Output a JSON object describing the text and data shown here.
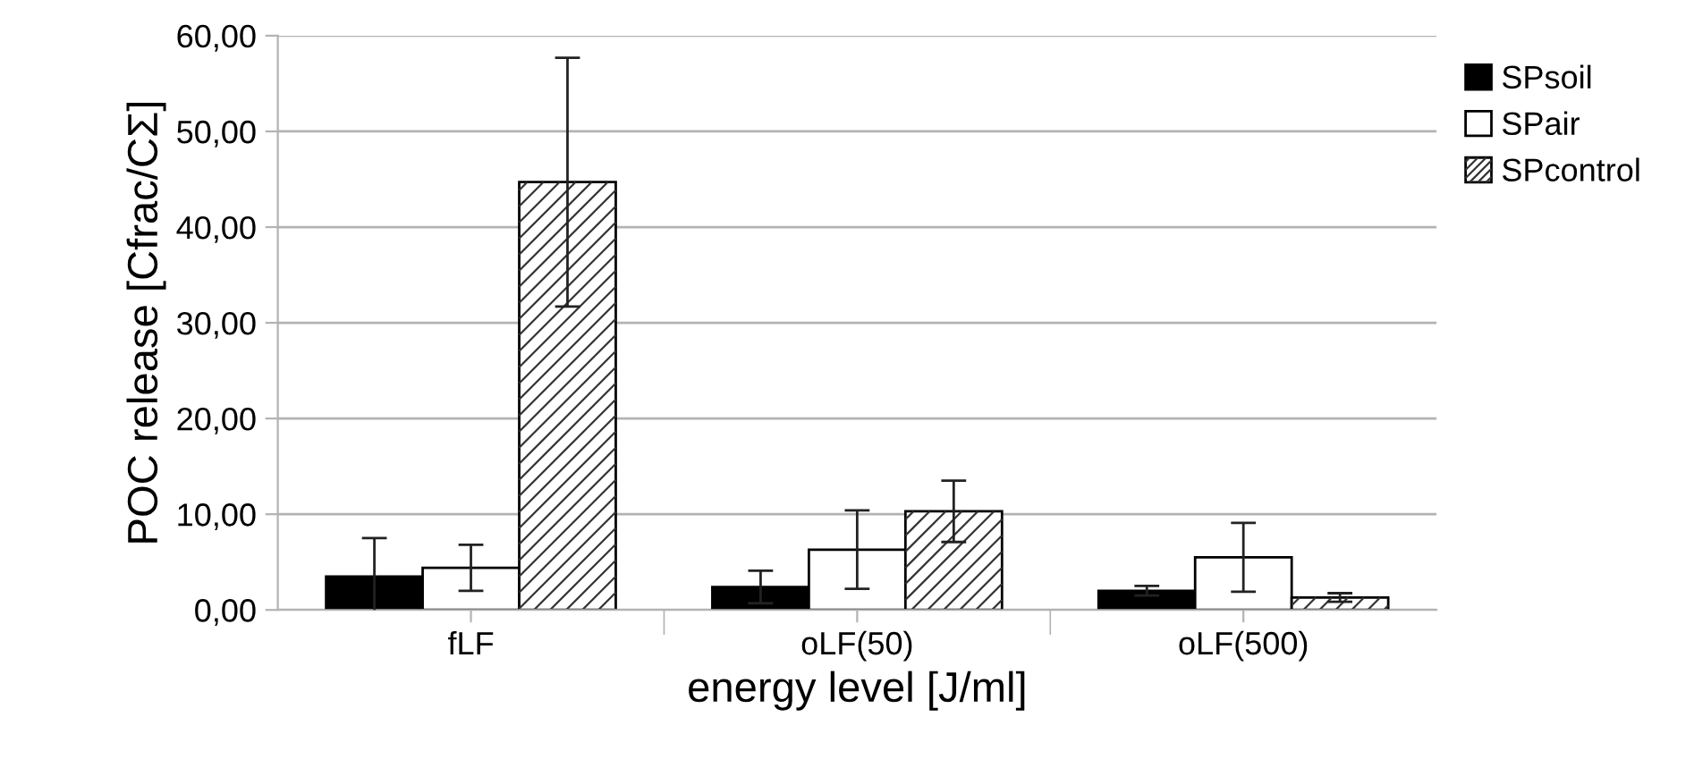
{
  "chart_data": {
    "type": "bar",
    "xlabel": "energy level [J/ml]",
    "ylabel": "POC release [Cfrac/CΣ]",
    "categories": [
      "fLF",
      "oLF(50)",
      "oLF(500)"
    ],
    "series": [
      {
        "name": "SPsoil",
        "color": "#000000",
        "values": [
          3.5,
          2.4,
          2.0
        ],
        "errors": [
          4.0,
          1.7,
          0.5
        ]
      },
      {
        "name": "SPair",
        "color": "#ffffff",
        "values": [
          4.4,
          6.3,
          5.5
        ],
        "errors": [
          2.4,
          4.1,
          3.6
        ]
      },
      {
        "name": "SPcontrol",
        "color": "#ffffff",
        "values": [
          44.7,
          10.3,
          1.3
        ],
        "errors": [
          13.0,
          3.2,
          0.45
        ]
      }
    ],
    "ylim": [
      0,
      60
    ],
    "yticks": [
      {
        "value": 0,
        "label": "0,00"
      },
      {
        "value": 10,
        "label": "10,00"
      },
      {
        "value": 20,
        "label": "20,00"
      },
      {
        "value": 30,
        "label": "30,00"
      },
      {
        "value": 40,
        "label": "40,00"
      },
      {
        "value": 50,
        "label": "50,00"
      },
      {
        "value": 60,
        "label": "60,00"
      }
    ],
    "grid": "y",
    "legend": "right"
  }
}
